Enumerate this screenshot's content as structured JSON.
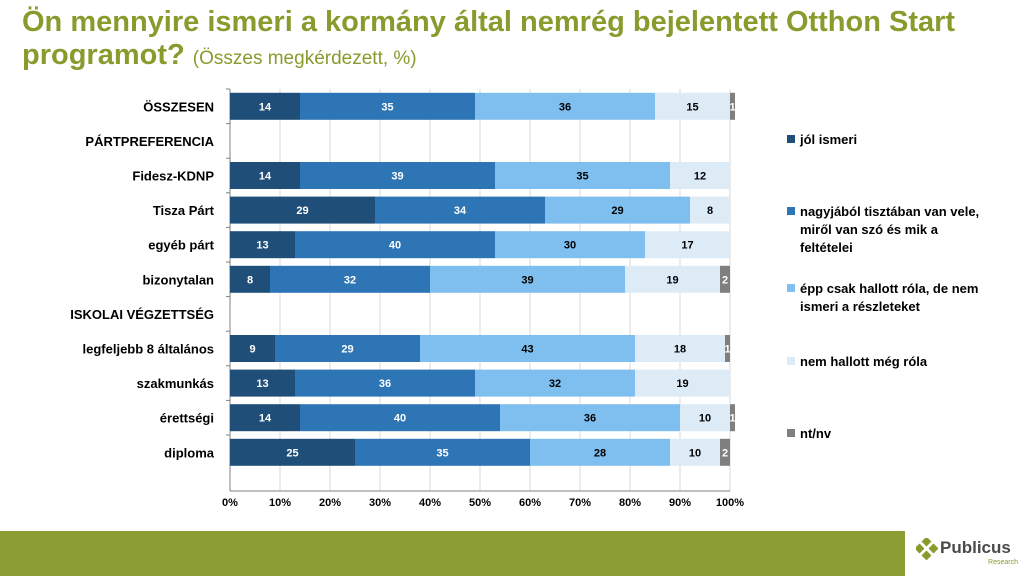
{
  "title": {
    "main": "Ön mennyire ismeri a kormány által nemrég bejelentett Otthon Start programot?",
    "sub": "(Összes megkérdezett, %)"
  },
  "chart_data": {
    "type": "bar",
    "orientation": "horizontal",
    "stacked": true,
    "percent_stacked": true,
    "categories": [
      "ÖSSZESEN",
      "PÁRTPREFERENCIA",
      "Fidesz-KDNP",
      "Tisza Párt",
      "egyéb párt",
      "bizonytalan",
      "ISKOLAI VÉGZETTSÉG",
      "legfeljebb 8 általános",
      "szakmunkás",
      "érettségi",
      "diploma"
    ],
    "series": [
      {
        "name": "jól ismeri",
        "color": "#1f4e79",
        "values": [
          14,
          null,
          14,
          29,
          13,
          8,
          null,
          9,
          13,
          14,
          25
        ]
      },
      {
        "name": "nagyjából tisztában van vele, miről van szó és mik a feltételei",
        "color": "#2e75b6",
        "values": [
          35,
          null,
          39,
          34,
          40,
          32,
          null,
          29,
          36,
          40,
          35
        ]
      },
      {
        "name": "épp csak hallott róla, de nem ismeri a részleteket",
        "color": "#7fbfef",
        "values": [
          36,
          null,
          35,
          29,
          30,
          39,
          null,
          43,
          32,
          36,
          28
        ]
      },
      {
        "name": "nem hallott még róla",
        "color": "#ddebf7",
        "values": [
          15,
          null,
          12,
          8,
          17,
          19,
          null,
          18,
          19,
          10,
          10
        ]
      },
      {
        "name": "nt/nv",
        "color": "#7f7f7f",
        "values": [
          1,
          null,
          0,
          0,
          0,
          2,
          null,
          1,
          0,
          1,
          2
        ]
      }
    ],
    "xlim": [
      0,
      100
    ],
    "x_ticks": [
      "0%",
      "10%",
      "20%",
      "30%",
      "40%",
      "50%",
      "60%",
      "70%",
      "80%",
      "90%",
      "100%"
    ],
    "grid": true,
    "legend_position": "right"
  },
  "footer": {
    "logo_name": "Publicus",
    "logo_sub": "Research",
    "bar_color": "#8c9d33"
  }
}
